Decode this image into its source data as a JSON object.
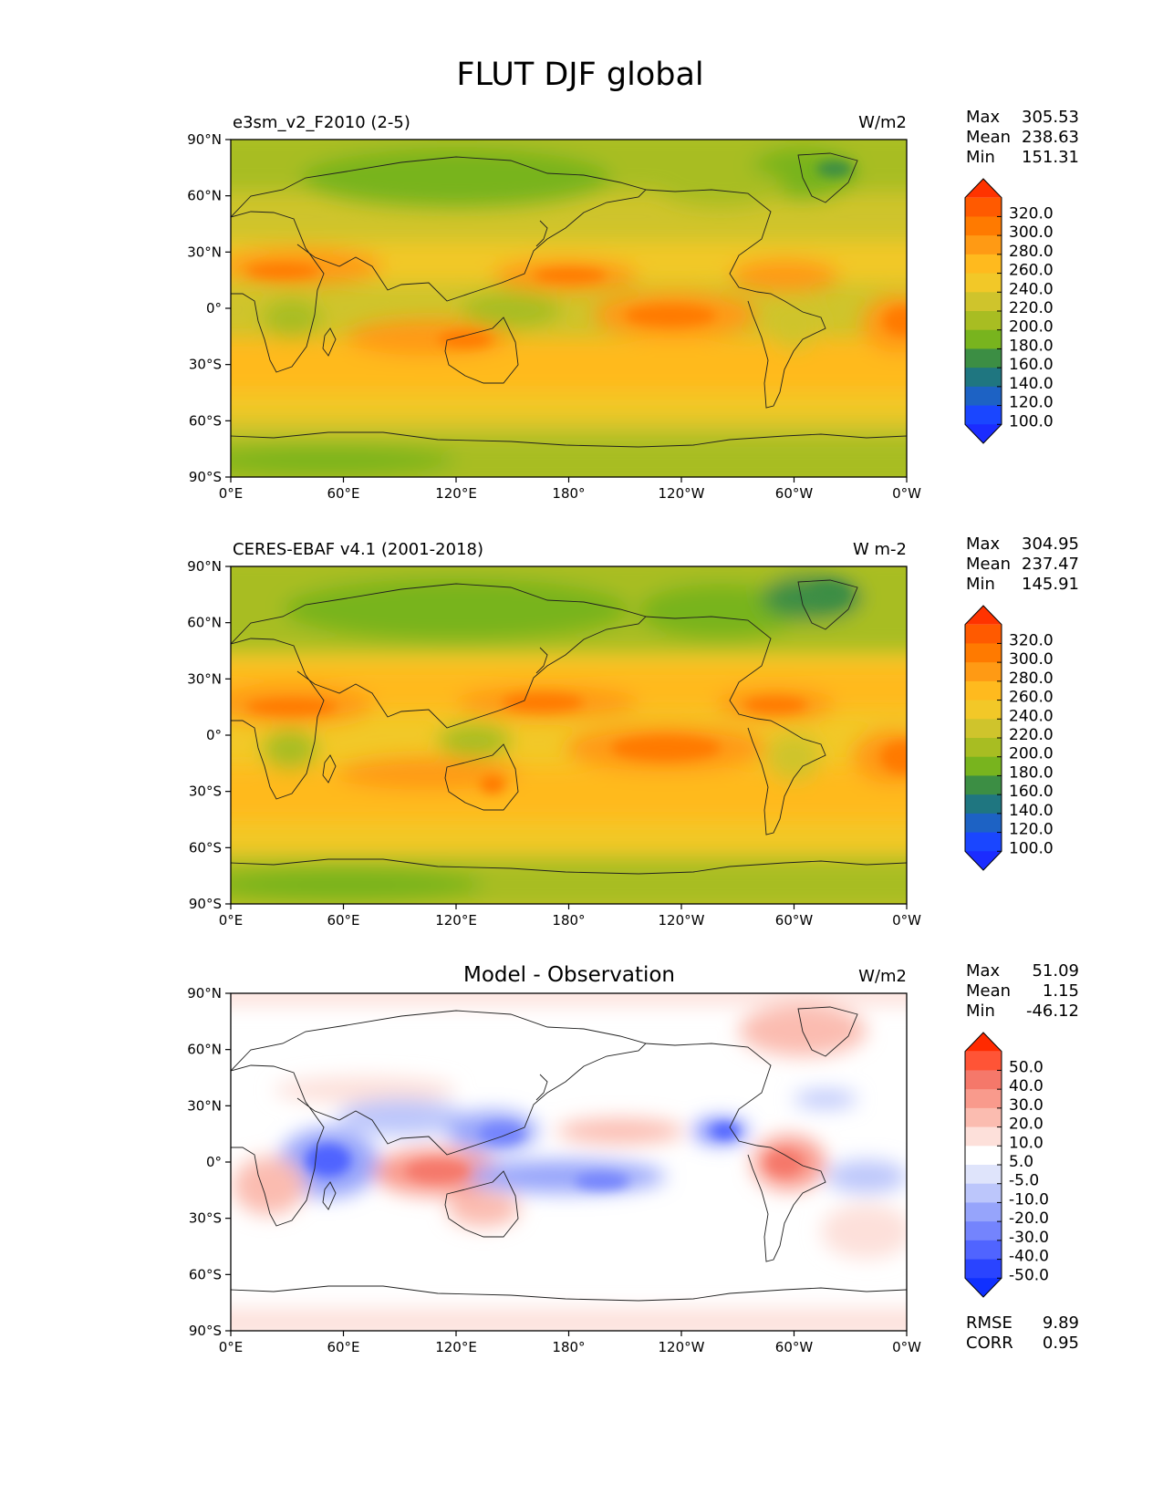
{
  "title": "FLUT DJF global",
  "lat_ticks": [
    "90°N",
    "60°N",
    "30°N",
    "0°",
    "30°S",
    "60°S",
    "90°S"
  ],
  "lon_ticks": [
    "0°E",
    "60°E",
    "120°E",
    "180°",
    "120°W",
    "60°W",
    "0°W"
  ],
  "stat_labels": {
    "max": "Max",
    "mean": "Mean",
    "min": "Min",
    "rmse": "RMSE",
    "corr": "CORR"
  },
  "panels": [
    {
      "id": "model",
      "left_title": "e3sm_v2_F2010 (2-5)",
      "center_title": "",
      "units": "W/m2",
      "stats": {
        "max": "305.53",
        "mean": "238.63",
        "min": "151.31"
      },
      "colorbar_levels": [
        "320.0",
        "300.0",
        "280.0",
        "260.0",
        "240.0",
        "220.0",
        "200.0",
        "180.0",
        "160.0",
        "140.0",
        "120.0",
        "100.0"
      ],
      "colorbar_colors": [
        "#ff3300",
        "#ff5a00",
        "#ff7a00",
        "#ff9a14",
        "#ffba1e",
        "#f2c828",
        "#cfc42c",
        "#a8bd22",
        "#78b41e",
        "#3c8e44",
        "#1f7680",
        "#1d62c4",
        "#1a46ff",
        "#1b2cff"
      ]
    },
    {
      "id": "obs",
      "left_title": "CERES-EBAF v4.1 (2001-2018)",
      "center_title": "",
      "units": "W m-2",
      "stats": {
        "max": "304.95",
        "mean": "237.47",
        "min": "145.91"
      },
      "colorbar_levels": [
        "320.0",
        "300.0",
        "280.0",
        "260.0",
        "240.0",
        "220.0",
        "200.0",
        "180.0",
        "160.0",
        "140.0",
        "120.0",
        "100.0"
      ],
      "colorbar_colors": [
        "#ff3300",
        "#ff5a00",
        "#ff7a00",
        "#ff9a14",
        "#ffba1e",
        "#f2c828",
        "#cfc42c",
        "#a8bd22",
        "#78b41e",
        "#3c8e44",
        "#1f7680",
        "#1d62c4",
        "#1a46ff",
        "#1b2cff"
      ]
    },
    {
      "id": "diff",
      "left_title": "",
      "center_title": "Model - Observation",
      "units": "W/m2",
      "stats": {
        "max": "51.09",
        "mean": "1.15",
        "min": "-46.12"
      },
      "extra_stats": {
        "rmse": "9.89",
        "corr": "0.95"
      },
      "colorbar_levels": [
        "50.0",
        "40.0",
        "30.0",
        "20.0",
        "10.0",
        "5.0",
        "-5.0",
        "-10.0",
        "-20.0",
        "-30.0",
        "-40.0",
        "-50.0"
      ],
      "colorbar_colors": [
        "#ff2a00",
        "#ff5436",
        "#f5786a",
        "#f99a8c",
        "#fbbcb0",
        "#fde0da",
        "#ffffff",
        "#dfe4fb",
        "#bcc6fb",
        "#96a4fb",
        "#7484fd",
        "#5064ff",
        "#2a44ff",
        "#1030ff"
      ]
    }
  ]
}
